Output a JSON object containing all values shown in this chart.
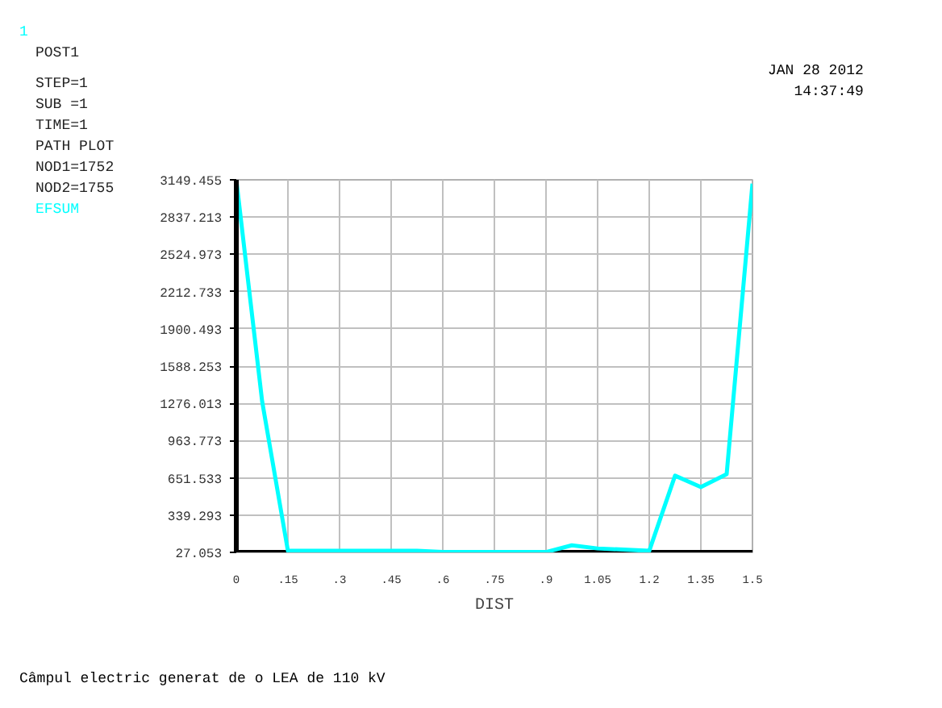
{
  "chart_data": {
    "type": "line",
    "xlabel": "DIST",
    "x": [
      0,
      0.075,
      0.15,
      0.3,
      0.45,
      0.525,
      0.6,
      0.9,
      0.975,
      1.05,
      1.2,
      1.275,
      1.35,
      1.425,
      1.5
    ],
    "series": [
      {
        "name": "EFSUM",
        "color": "#00ffff",
        "values": [
          3149,
          1294,
          40,
          40,
          40,
          40,
          30,
          30,
          86,
          60,
          40,
          670,
          575,
          683,
          3118
        ]
      }
    ],
    "xlim": [
      0,
      1.5
    ],
    "ylim": [
      27.053,
      3149.455
    ],
    "xticks": [
      0,
      {
        "value": 0.15,
        "label": ".15"
      },
      {
        "value": 0.3,
        "label": ".3"
      },
      {
        "value": 0.45,
        "label": ".45"
      },
      {
        "value": 0.6,
        "label": ".6"
      },
      {
        "value": 0.75,
        "label": ".75"
      },
      {
        "value": 0.9,
        "label": ".9"
      },
      1.05,
      1.2,
      1.35,
      1.5
    ],
    "yticks": [
      27.053,
      339.293,
      651.533,
      963.773,
      1276.013,
      1588.253,
      1900.493,
      2212.733,
      2524.973,
      2837.213,
      3149.455
    ],
    "grid": true,
    "marker": "none",
    "line_style": "solid",
    "annotations": [
      "1",
      "POST1",
      "STEP=1",
      "SUB =1",
      "TIME=1",
      "PATH PLOT",
      "NOD1=1752",
      "NOD2=1755",
      "JAN 28 2012",
      "14:37:49",
      "Câmpul electric generat de o LEA de 110 kV"
    ]
  }
}
